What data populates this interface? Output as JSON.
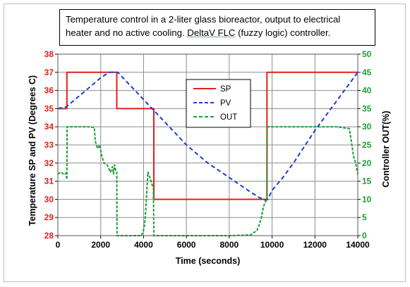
{
  "note": {
    "line1": "Temperature control in a 2-liter glass bioreactor, output to electrical",
    "line2_a": "heater and no active cooling.  ",
    "line2_b": "DeltaV FLC",
    "line2_c": " (fuzzy logic) controller."
  },
  "chart_data": {
    "type": "line",
    "title": "",
    "xlabel": "Time (seconds)",
    "ylabel_left": "Temperature SP and PV (Degrees C)",
    "ylabel_right": "Controller OUT(%)",
    "xlim": [
      0,
      14000
    ],
    "ylim_left": [
      28,
      38
    ],
    "ylim_right": [
      0,
      50
    ],
    "x_ticks": [
      "0",
      "2000",
      "4000",
      "6000",
      "8000",
      "10000",
      "12000",
      "14000"
    ],
    "y_left_ticks": [
      "28",
      "29",
      "30",
      "31",
      "32",
      "33",
      "34",
      "35",
      "36",
      "37",
      "38"
    ],
    "y_right_ticks": [
      "0",
      "5",
      "10",
      "15",
      "20",
      "25",
      "30",
      "35",
      "40",
      "45",
      "50"
    ],
    "grid": true,
    "legend_position": "center-top",
    "colors": {
      "SP": "#e0201b",
      "PV": "#1f3bd6",
      "OUT": "#1a9e35",
      "grid": "#8c8c8c"
    },
    "series": [
      {
        "name": "SP",
        "axis": "left",
        "style": "solid",
        "x": [
          0,
          420,
          420,
          2750,
          2750,
          4480,
          4480,
          9760,
          9760,
          14000
        ],
        "y": [
          35,
          35,
          37,
          37,
          35,
          35,
          30,
          30,
          37,
          37
        ]
      },
      {
        "name": "PV",
        "axis": "left",
        "style": "dashed",
        "x": [
          0,
          400,
          800,
          1200,
          1600,
          2000,
          2400,
          2800,
          3200,
          3600,
          4000,
          4400,
          4800,
          5200,
          5600,
          6000,
          6500,
          7000,
          7500,
          8000,
          8500,
          9000,
          9400,
          9700,
          9800,
          10000,
          10500,
          11000,
          11500,
          12000,
          12500,
          13000,
          13500,
          14000
        ],
        "y": [
          35,
          35.1,
          35.5,
          35.9,
          36.3,
          36.7,
          37,
          37,
          36.5,
          36,
          35.5,
          35,
          34.5,
          34,
          33.5,
          33,
          32.5,
          32.0,
          31.6,
          31.2,
          30.8,
          30.4,
          30.1,
          29.95,
          30.0,
          30.5,
          31.2,
          32.0,
          32.9,
          33.8,
          34.6,
          35.4,
          36.2,
          37
        ]
      },
      {
        "name": "OUT",
        "axis": "right",
        "style": "dashed",
        "x": [
          0,
          150,
          300,
          380,
          420,
          430,
          600,
          1000,
          1400,
          1700,
          1750,
          1850,
          1950,
          2050,
          2150,
          2300,
          2450,
          2550,
          2600,
          2650,
          2700,
          2750,
          2760,
          3500,
          3900,
          4000,
          4050,
          4100,
          4150,
          4200,
          4300,
          4350,
          4400,
          4460,
          4480,
          4500,
          6000,
          8000,
          9000,
          9300,
          9400,
          9500,
          9600,
          9700,
          9760,
          9770,
          10500,
          12000,
          13000,
          13600,
          13700,
          13800,
          13900,
          14000
        ],
        "y": [
          17,
          17.5,
          16.8,
          17.2,
          15.5,
          30,
          30,
          30,
          30,
          29.8,
          26,
          24,
          25,
          22,
          20,
          19.5,
          17.5,
          19,
          17,
          19.5,
          18,
          17.5,
          0,
          0,
          0,
          1.5,
          3,
          7,
          12,
          17.5,
          16,
          15,
          14,
          13,
          0,
          0,
          0,
          0,
          0.2,
          1.5,
          3,
          5,
          8,
          9.5,
          10,
          30,
          30,
          30,
          30,
          29.5,
          26,
          22,
          20,
          17
        ]
      }
    ]
  }
}
